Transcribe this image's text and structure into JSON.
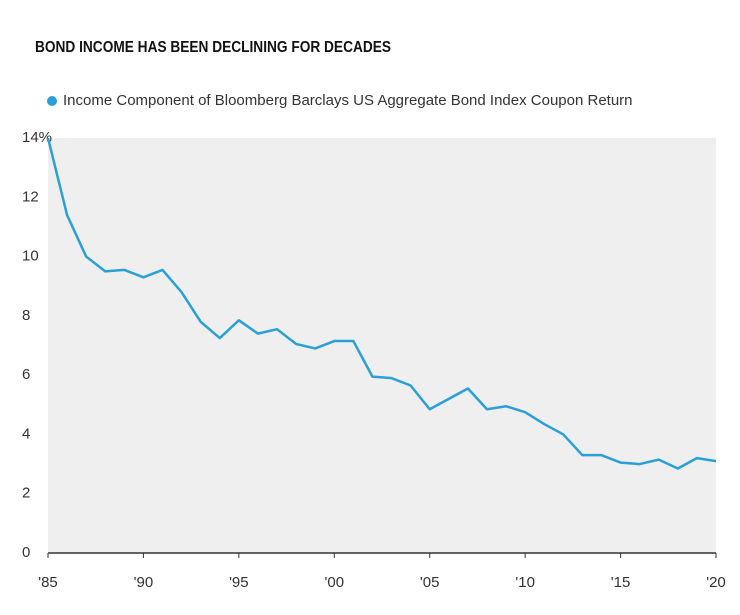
{
  "chart_data": {
    "type": "line",
    "title": "BOND INCOME HAS BEEN DECLINING FOR DECADES",
    "x": [
      1985,
      1986,
      1987,
      1988,
      1989,
      1990,
      1991,
      1992,
      1993,
      1994,
      1995,
      1996,
      1997,
      1998,
      1999,
      2000,
      2001,
      2002,
      2003,
      2004,
      2005,
      2006,
      2007,
      2008,
      2009,
      2010,
      2011,
      2012,
      2013,
      2014,
      2015,
      2016,
      2017,
      2018,
      2019,
      2020
    ],
    "series": [
      {
        "name": "Income Component of Bloomberg Barclays US Aggregate Bond Index Coupon Return",
        "color": "#2a9fd8",
        "values": [
          14.0,
          11.4,
          10.0,
          9.5,
          9.55,
          9.3,
          9.55,
          8.8,
          7.8,
          7.25,
          7.85,
          7.4,
          7.55,
          7.05,
          6.9,
          7.15,
          7.15,
          5.95,
          5.9,
          5.65,
          4.85,
          5.2,
          5.55,
          4.85,
          4.95,
          4.75,
          4.35,
          4.0,
          3.3,
          3.3,
          3.05,
          3.0,
          3.15,
          2.85,
          3.2,
          3.1
        ]
      }
    ],
    "xlim": [
      1985,
      2020
    ],
    "xticks": [
      {
        "value": 1985,
        "label": "'85"
      },
      {
        "value": 1990,
        "label": "'90"
      },
      {
        "value": 1995,
        "label": "'95"
      },
      {
        "value": 2000,
        "label": "'00"
      },
      {
        "value": 2005,
        "label": "'05"
      },
      {
        "value": 2010,
        "label": "'10"
      },
      {
        "value": 2015,
        "label": "'15"
      },
      {
        "value": 2020,
        "label": "'20"
      }
    ],
    "ylim": [
      0,
      14
    ],
    "yticks": [
      0,
      2,
      4,
      6,
      8,
      10,
      12,
      {
        "value": 14,
        "label": "14%"
      }
    ],
    "background": "#efefef"
  }
}
